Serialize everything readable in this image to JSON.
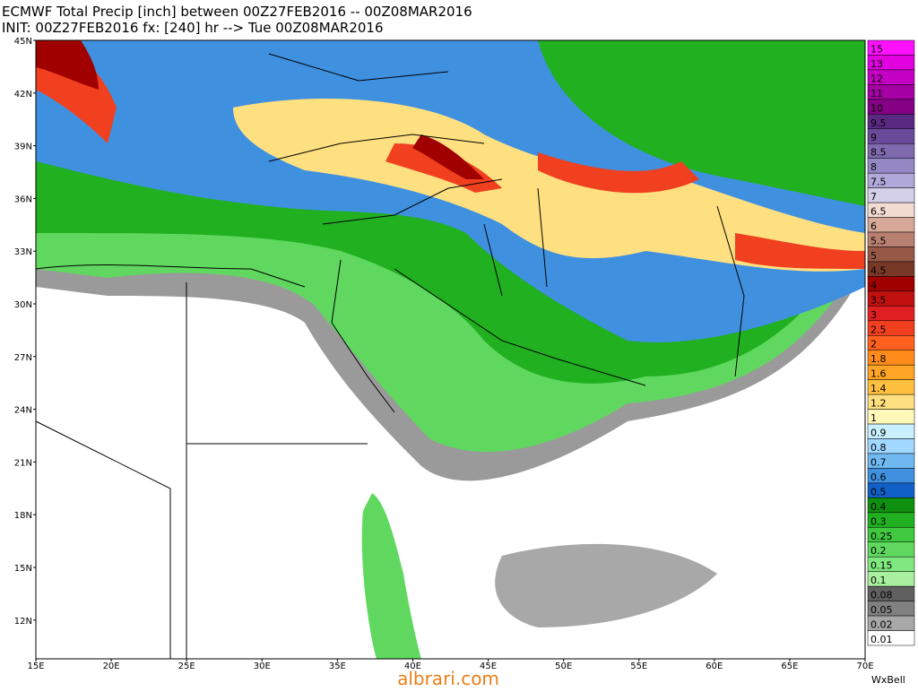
{
  "header": {
    "line1": "ECMWF Total Precip [inch] between 00Z27FEB2016 -- 00Z08MAR2016",
    "line2": "INIT: 00Z27FEB2016 fx: [240] hr --> Tue 00Z08MAR2016"
  },
  "map": {
    "latitudes": [
      "45N",
      "42N",
      "39N",
      "36N",
      "33N",
      "30N",
      "27N",
      "24N",
      "21N",
      "18N",
      "15N",
      "12N"
    ],
    "longitudes": [
      "15E",
      "20E",
      "25E",
      "30E",
      "35E",
      "40E",
      "45E",
      "50E",
      "55E",
      "60E",
      "65E",
      "70E"
    ]
  },
  "colorbar": [
    {
      "label": "15",
      "color": "#ff10ff"
    },
    {
      "label": "13",
      "color": "#e000e0"
    },
    {
      "label": "12",
      "color": "#c400c4"
    },
    {
      "label": "11",
      "color": "#a400a4"
    },
    {
      "label": "10",
      "color": "#840084"
    },
    {
      "label": "9.5",
      "color": "#5a2a82"
    },
    {
      "label": "9",
      "color": "#6a4a9a"
    },
    {
      "label": "8.5",
      "color": "#7f6ab0"
    },
    {
      "label": "8",
      "color": "#9488c4"
    },
    {
      "label": "7.5",
      "color": "#b0a8d8"
    },
    {
      "label": "7",
      "color": "#d4d0ea"
    },
    {
      "label": "6.5",
      "color": "#f2dcd2"
    },
    {
      "label": "6",
      "color": "#d8a898"
    },
    {
      "label": "5.5",
      "color": "#b88070"
    },
    {
      "label": "5",
      "color": "#985848"
    },
    {
      "label": "4.5",
      "color": "#783828"
    },
    {
      "label": "4",
      "color": "#a00000"
    },
    {
      "label": "3.5",
      "color": "#c01010"
    },
    {
      "label": "3",
      "color": "#e02020"
    },
    {
      "label": "2.5",
      "color": "#f04020"
    },
    {
      "label": "2",
      "color": "#ff6020"
    },
    {
      "label": "1.8",
      "color": "#ff8c1a"
    },
    {
      "label": "1.6",
      "color": "#ffa526"
    },
    {
      "label": "1.4",
      "color": "#ffc040"
    },
    {
      "label": "1.2",
      "color": "#ffe080"
    },
    {
      "label": "1",
      "color": "#fff8b8"
    },
    {
      "label": "0.9",
      "color": "#c8f0ff"
    },
    {
      "label": "0.8",
      "color": "#a0d8ff"
    },
    {
      "label": "0.7",
      "color": "#70b8f0"
    },
    {
      "label": "0.6",
      "color": "#4090e0"
    },
    {
      "label": "0.5",
      "color": "#1060c8"
    },
    {
      "label": "0.4",
      "color": "#109010"
    },
    {
      "label": "0.3",
      "color": "#20b020"
    },
    {
      "label": "0.25",
      "color": "#40c840"
    },
    {
      "label": "0.2",
      "color": "#60d860"
    },
    {
      "label": "0.15",
      "color": "#80e880"
    },
    {
      "label": "0.1",
      "color": "#a8f0a0"
    },
    {
      "label": "0.08",
      "color": "#606060"
    },
    {
      "label": "0.05",
      "color": "#808080"
    },
    {
      "label": "0.02",
      "color": "#a8a8a8"
    },
    {
      "label": "0.01",
      "color": "#ffffff"
    }
  ],
  "footer": {
    "watermark": "albrari.com",
    "credit": "WxBell"
  }
}
